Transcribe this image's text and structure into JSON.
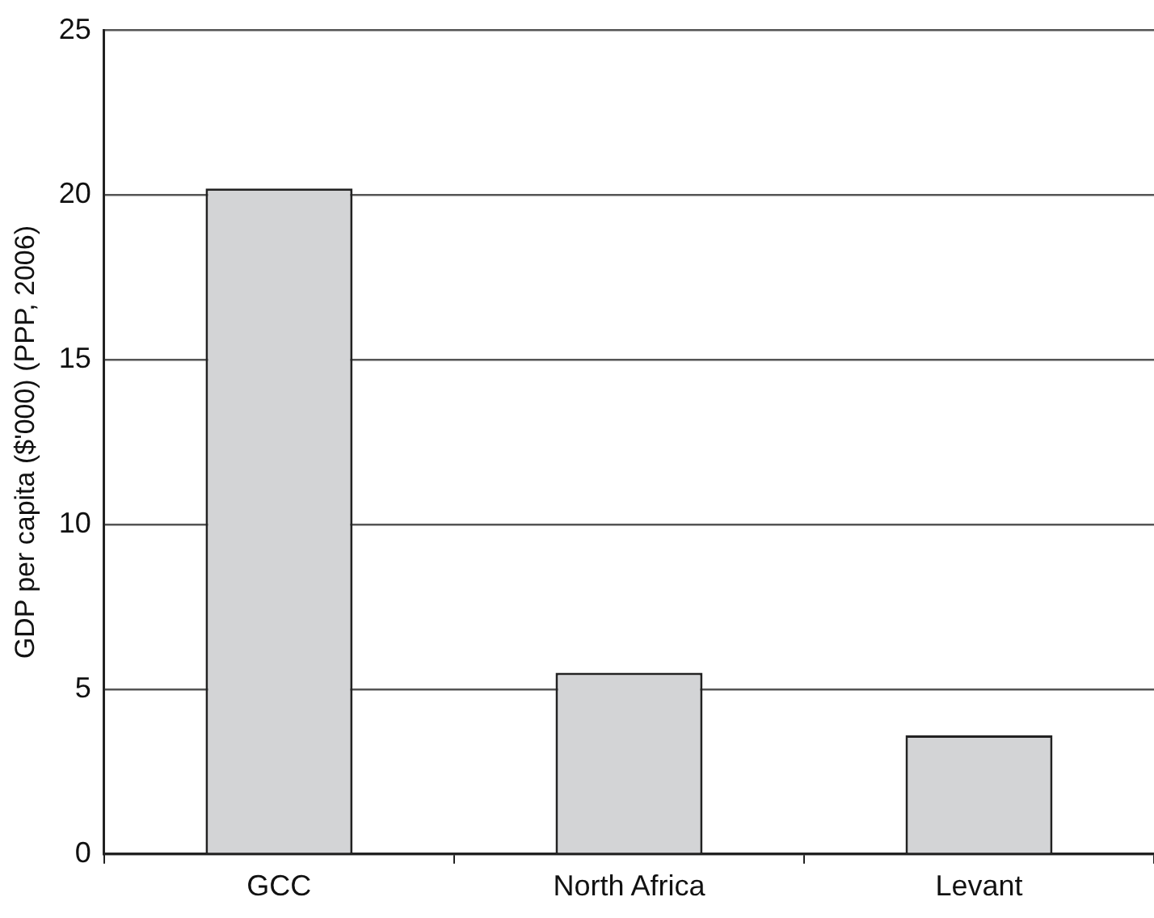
{
  "chart_data": {
    "type": "bar",
    "ylabel": "GDP per capita ($'000) (PPP, 2006)",
    "categories": [
      "GCC",
      "North Africa",
      "Levant"
    ],
    "values": [
      20.2,
      5.5,
      3.6
    ],
    "color": "#d3d4d6",
    "ylim": [
      0,
      25
    ],
    "yticks": [
      0,
      5,
      10,
      15,
      20,
      25
    ],
    "grid": "y",
    "legend": false
  }
}
